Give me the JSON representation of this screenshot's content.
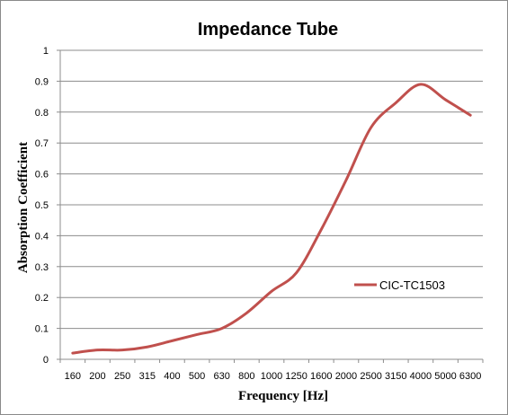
{
  "chart_data": {
    "type": "line",
    "title": "Impedance Tube",
    "xlabel": "Frequency [Hz]",
    "ylabel": "Absorption Coefficient",
    "categories": [
      "160",
      "200",
      "250",
      "315",
      "400",
      "500",
      "630",
      "800",
      "1000",
      "1250",
      "1600",
      "2000",
      "2500",
      "3150",
      "4000",
      "5000",
      "6300"
    ],
    "ylim": [
      0,
      1
    ],
    "yticks": [
      "0",
      "0.1",
      "0.2",
      "0.3",
      "0.4",
      "0.5",
      "0.6",
      "0.7",
      "0.8",
      "0.9",
      "1"
    ],
    "grid": true,
    "legend_position": "right",
    "series": [
      {
        "name": "CIC-TC1503",
        "color": "#c0504d",
        "values": [
          0.02,
          0.03,
          0.03,
          0.04,
          0.06,
          0.08,
          0.1,
          0.15,
          0.22,
          0.28,
          0.42,
          0.58,
          0.75,
          0.83,
          0.89,
          0.84,
          0.79
        ]
      }
    ]
  }
}
